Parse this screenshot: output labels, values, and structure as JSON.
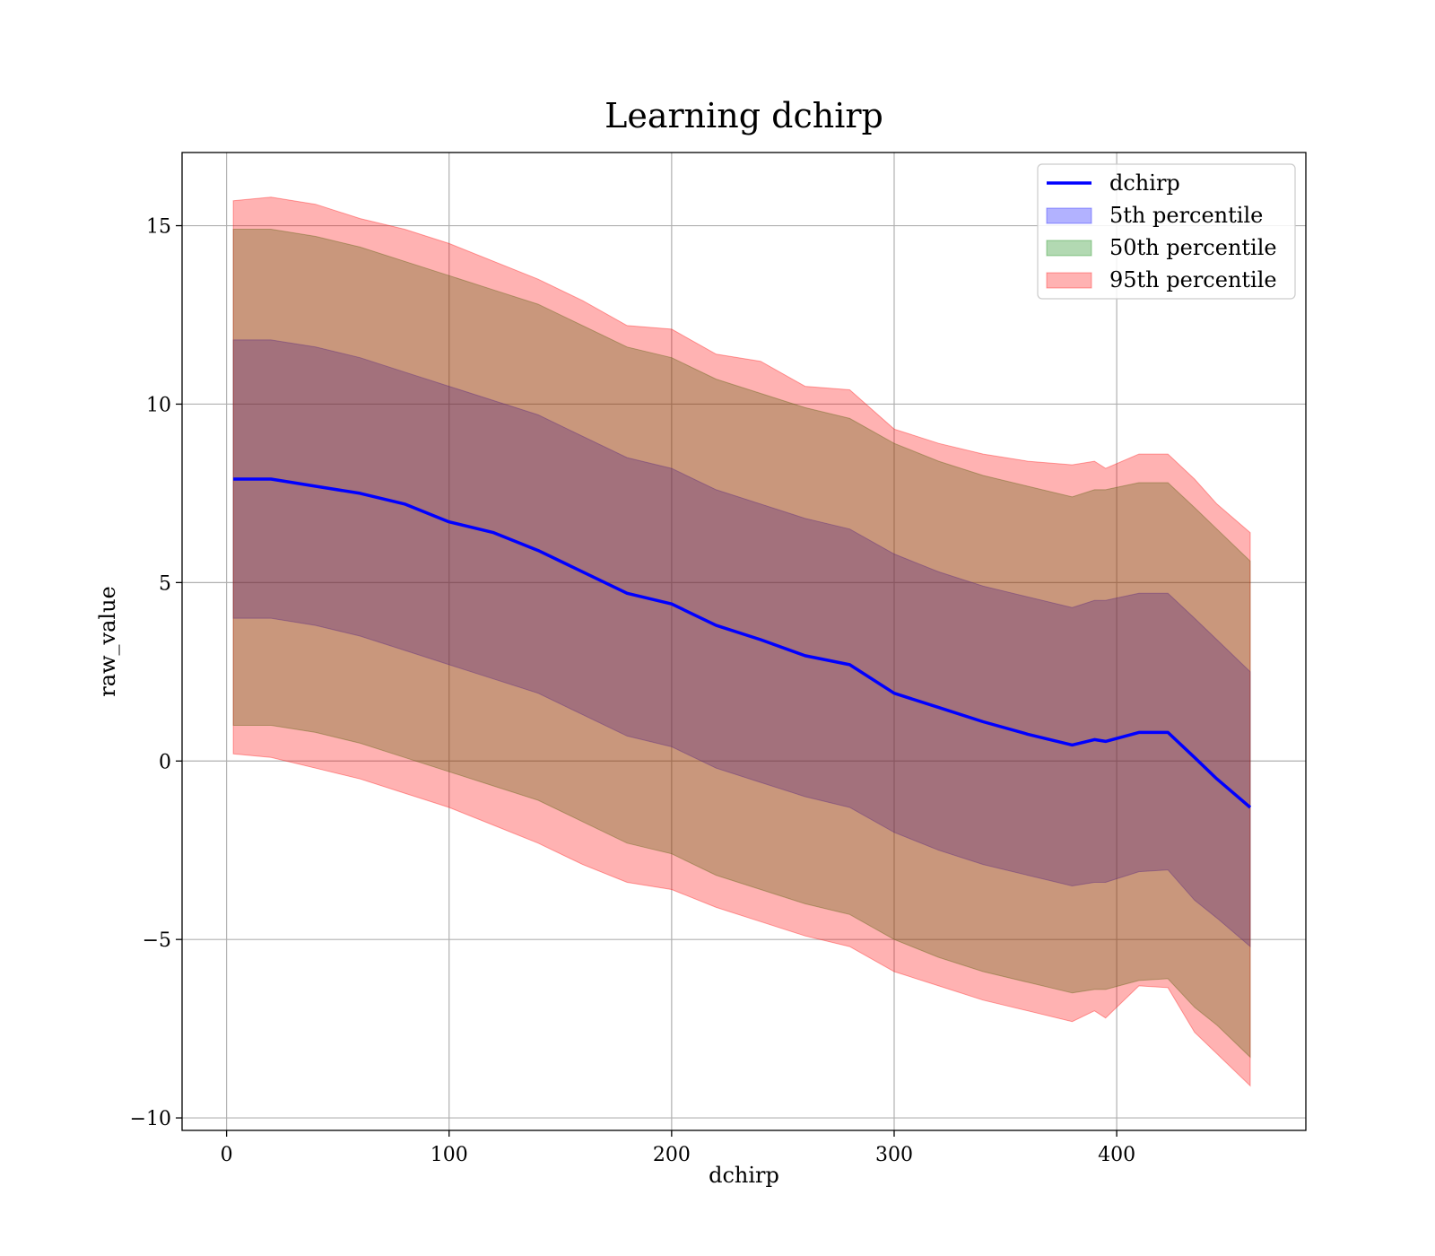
{
  "chart_data": {
    "type": "area",
    "title": "Learning dchirp",
    "xlabel": "dchirp",
    "ylabel": "raw_value",
    "xlim": [
      -20,
      485
    ],
    "ylim": [
      -10.35,
      17.05
    ],
    "x_ticks": [
      0,
      100,
      200,
      300,
      400
    ],
    "x_tick_labels": [
      "0",
      "100",
      "200",
      "300",
      "400"
    ],
    "y_ticks": [
      -10,
      -5,
      0,
      5,
      10,
      15
    ],
    "y_tick_labels": [
      "−10",
      "−5",
      "0",
      "5",
      "10",
      "15"
    ],
    "grid": true,
    "legend_position": "top-right",
    "x": [
      3,
      20,
      40,
      60,
      80,
      100,
      120,
      140,
      160,
      180,
      200,
      220,
      240,
      260,
      280,
      300,
      320,
      340,
      360,
      380,
      390,
      395,
      410,
      423,
      435,
      445,
      460
    ],
    "series": [
      {
        "name": "dchirp",
        "kind": "line",
        "color": "#0000ff",
        "values": [
          7.9,
          7.9,
          7.7,
          7.5,
          7.2,
          6.7,
          6.4,
          5.9,
          5.3,
          4.7,
          4.4,
          3.8,
          3.4,
          2.95,
          2.7,
          1.9,
          1.5,
          1.1,
          0.75,
          0.45,
          0.6,
          0.55,
          0.8,
          0.8,
          0.1,
          -0.5,
          -1.3
        ]
      },
      {
        "name": "5th percentile",
        "kind": "band",
        "color": "#0000ff",
        "lower": [
          4.0,
          4.0,
          3.8,
          3.5,
          3.1,
          2.7,
          2.3,
          1.9,
          1.3,
          0.7,
          0.4,
          -0.2,
          -0.6,
          -1.0,
          -1.3,
          -2.0,
          -2.5,
          -2.9,
          -3.2,
          -3.5,
          -3.4,
          -3.4,
          -3.1,
          -3.05,
          -3.9,
          -4.4,
          -5.2
        ],
        "upper": [
          11.8,
          11.8,
          11.6,
          11.3,
          10.9,
          10.5,
          10.1,
          9.7,
          9.1,
          8.5,
          8.2,
          7.6,
          7.2,
          6.8,
          6.5,
          5.8,
          5.3,
          4.9,
          4.6,
          4.3,
          4.5,
          4.5,
          4.7,
          4.7,
          4.0,
          3.4,
          2.5
        ]
      },
      {
        "name": "50th percentile",
        "kind": "band",
        "color": "#008000",
        "lower": [
          1.0,
          1.0,
          0.8,
          0.5,
          0.1,
          -0.3,
          -0.7,
          -1.1,
          -1.7,
          -2.3,
          -2.6,
          -3.2,
          -3.6,
          -4.0,
          -4.3,
          -5.0,
          -5.5,
          -5.9,
          -6.2,
          -6.5,
          -6.4,
          -6.4,
          -6.15,
          -6.1,
          -6.9,
          -7.4,
          -8.3
        ],
        "upper": [
          14.9,
          14.9,
          14.7,
          14.4,
          14.0,
          13.6,
          13.2,
          12.8,
          12.2,
          11.6,
          11.3,
          10.7,
          10.3,
          9.9,
          9.6,
          8.9,
          8.4,
          8.0,
          7.7,
          7.4,
          7.6,
          7.6,
          7.8,
          7.8,
          7.1,
          6.5,
          5.6
        ]
      },
      {
        "name": "95th percentile",
        "kind": "band",
        "color": "#ff0000",
        "lower": [
          0.2,
          0.1,
          -0.2,
          -0.5,
          -0.9,
          -1.3,
          -1.8,
          -2.3,
          -2.9,
          -3.4,
          -3.6,
          -4.1,
          -4.5,
          -4.9,
          -5.2,
          -5.9,
          -6.3,
          -6.7,
          -7.0,
          -7.3,
          -7.0,
          -7.2,
          -6.3,
          -6.35,
          -7.6,
          -8.2,
          -9.1
        ],
        "upper": [
          15.7,
          15.8,
          15.6,
          15.2,
          14.9,
          14.5,
          14.0,
          13.5,
          12.9,
          12.2,
          12.1,
          11.4,
          11.2,
          10.5,
          10.4,
          9.3,
          8.9,
          8.6,
          8.4,
          8.3,
          8.4,
          8.2,
          8.6,
          8.6,
          7.9,
          7.2,
          6.4
        ]
      }
    ]
  }
}
